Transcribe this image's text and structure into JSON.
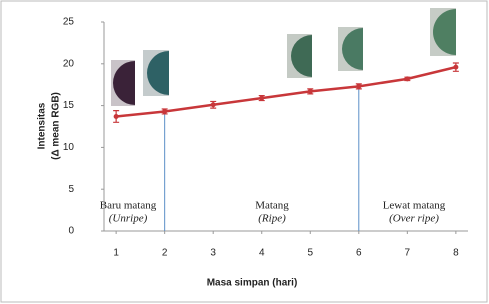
{
  "chart_data": {
    "type": "line",
    "xlabel": "Masa simpan (hari)",
    "ylabel": [
      "Intensitas",
      "(Δ mean RGB)"
    ],
    "x": [
      1,
      2,
      3,
      4,
      5,
      6,
      7,
      8
    ],
    "series": [
      {
        "color": "#c8373a",
        "values": [
          13.7,
          14.3,
          15.1,
          15.9,
          16.7,
          17.3,
          18.2,
          19.6
        ],
        "errors": [
          0.7,
          0.3,
          0.4,
          0.3,
          0.3,
          0.3,
          0.2,
          0.5
        ]
      }
    ],
    "xlim": [
      0.75,
      8.25
    ],
    "xticks": [
      1,
      2,
      3,
      4,
      5,
      6,
      7,
      8
    ],
    "ylim": [
      0,
      25
    ],
    "yticks": [
      0,
      5,
      10,
      15,
      20,
      25
    ],
    "vlines": [
      2,
      6
    ],
    "vline_color": "#5b8fc7",
    "annotations": [
      {
        "text": "Baru matang",
        "subtext": "(Unripe)"
      },
      {
        "text": "Matang",
        "subtext": "(Ripe)"
      },
      {
        "text": "Lewat matang",
        "subtext": "(Over ripe)"
      }
    ]
  }
}
